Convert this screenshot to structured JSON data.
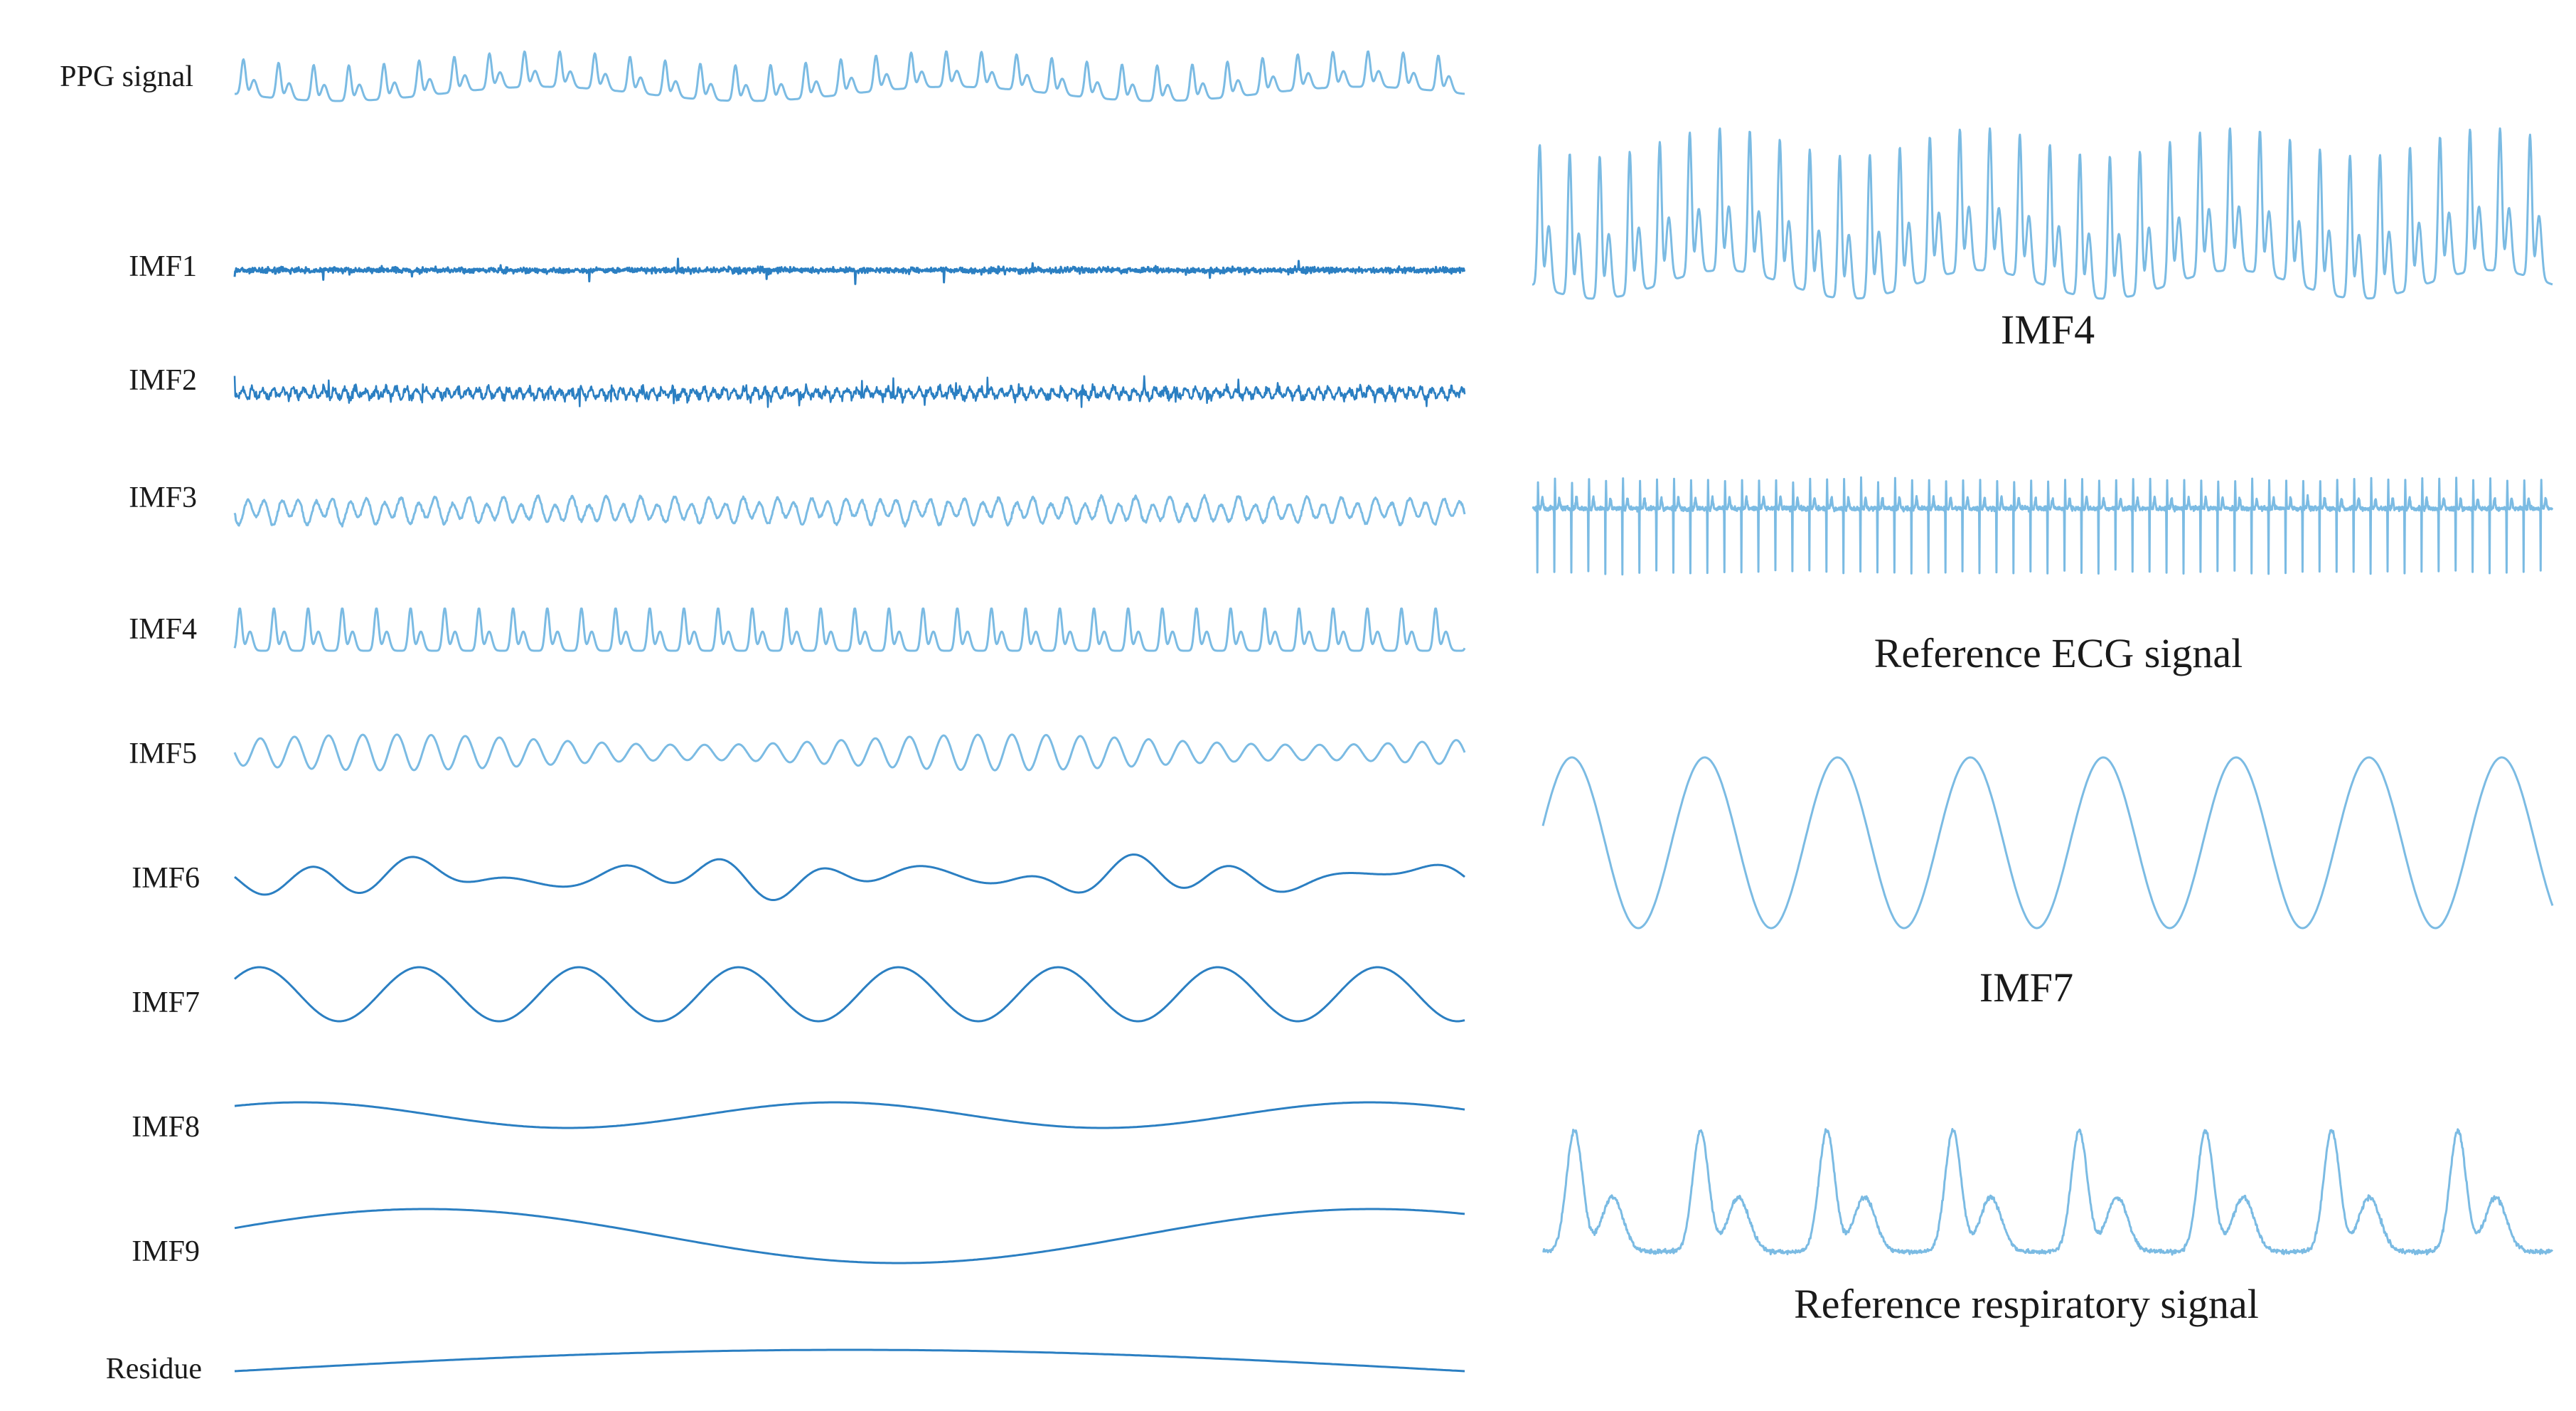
{
  "colors": {
    "signal": "#2b7fc2",
    "signal_light": "#7bbbe3",
    "text": "#1a1a1a"
  },
  "left_panel": {
    "rows": [
      {
        "label": "PPG signal",
        "kind": "ppg"
      },
      {
        "label": "IMF1",
        "kind": "noise"
      },
      {
        "label": "IMF2",
        "kind": "spiky"
      },
      {
        "label": "IMF3",
        "kind": "highfreq"
      },
      {
        "label": "IMF4",
        "kind": "pulse"
      },
      {
        "label": "IMF5",
        "kind": "sine"
      },
      {
        "label": "IMF6",
        "kind": "irregular"
      },
      {
        "label": "IMF7",
        "kind": "resp"
      },
      {
        "label": "IMF8",
        "kind": "slow"
      },
      {
        "label": "IMF9",
        "kind": "slower"
      },
      {
        "label": "Residue",
        "kind": "trend"
      }
    ]
  },
  "right_panel": {
    "panels": [
      {
        "label": "IMF4",
        "kind": "pulse_big"
      },
      {
        "label": "Reference ECG signal",
        "kind": "ecg"
      },
      {
        "label": "IMF7",
        "kind": "resp_big"
      },
      {
        "label": "Reference respiratory signal",
        "kind": "resp_ref"
      }
    ]
  }
}
